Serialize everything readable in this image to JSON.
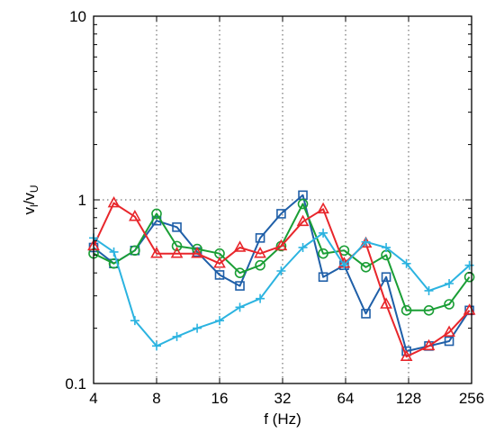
{
  "chart_data": {
    "type": "line",
    "xlabel": "f (Hz)",
    "ylabel_main": "v",
    "ylabel_sub1": "l",
    "ylabel_sep": "/v",
    "ylabel_sub2": "U",
    "x_scale": "log2",
    "y_scale": "log10",
    "xlim": [
      4,
      256
    ],
    "ylim": [
      0.1,
      10
    ],
    "grid": true,
    "x_ticks": [
      4,
      8,
      16,
      32,
      64,
      128,
      256
    ],
    "x_tick_labels": [
      "4",
      "8",
      "16",
      "32",
      "64",
      "128",
      "256"
    ],
    "y_ticks": [
      0.1,
      1,
      10
    ],
    "y_tick_labels": [
      "0.1",
      "1",
      "10"
    ],
    "x": [
      4,
      5,
      6.3,
      8,
      10,
      12.5,
      16,
      20,
      25,
      31.5,
      40,
      50,
      63,
      80,
      100,
      125,
      160,
      200,
      250
    ],
    "series": [
      {
        "color": "#1f5fa8",
        "marker": "square",
        "values": [
          0.55,
          0.45,
          0.53,
          0.77,
          0.71,
          0.52,
          0.39,
          0.34,
          0.62,
          0.84,
          1.06,
          0.38,
          0.44,
          0.24,
          0.38,
          0.15,
          0.16,
          0.17,
          0.25
        ]
      },
      {
        "color": "#1a9e35",
        "marker": "circle",
        "values": [
          0.51,
          0.45,
          0.53,
          0.84,
          0.56,
          0.54,
          0.51,
          0.4,
          0.44,
          0.56,
          0.95,
          0.51,
          0.53,
          0.43,
          0.5,
          0.25,
          0.25,
          0.27,
          0.38
        ]
      },
      {
        "color": "#e8262b",
        "marker": "triangle",
        "values": [
          0.56,
          0.96,
          0.81,
          0.51,
          0.51,
          0.51,
          0.45,
          0.55,
          0.51,
          0.56,
          0.76,
          0.89,
          0.45,
          0.58,
          0.27,
          0.14,
          0.16,
          0.19,
          0.25
        ]
      },
      {
        "color": "#2bb3e0",
        "marker": "plus",
        "values": [
          0.62,
          0.52,
          0.22,
          0.16,
          0.18,
          0.2,
          0.22,
          0.26,
          0.29,
          0.41,
          0.55,
          0.66,
          0.44,
          0.59,
          0.55,
          0.45,
          0.32,
          0.35,
          0.44
        ]
      }
    ]
  }
}
